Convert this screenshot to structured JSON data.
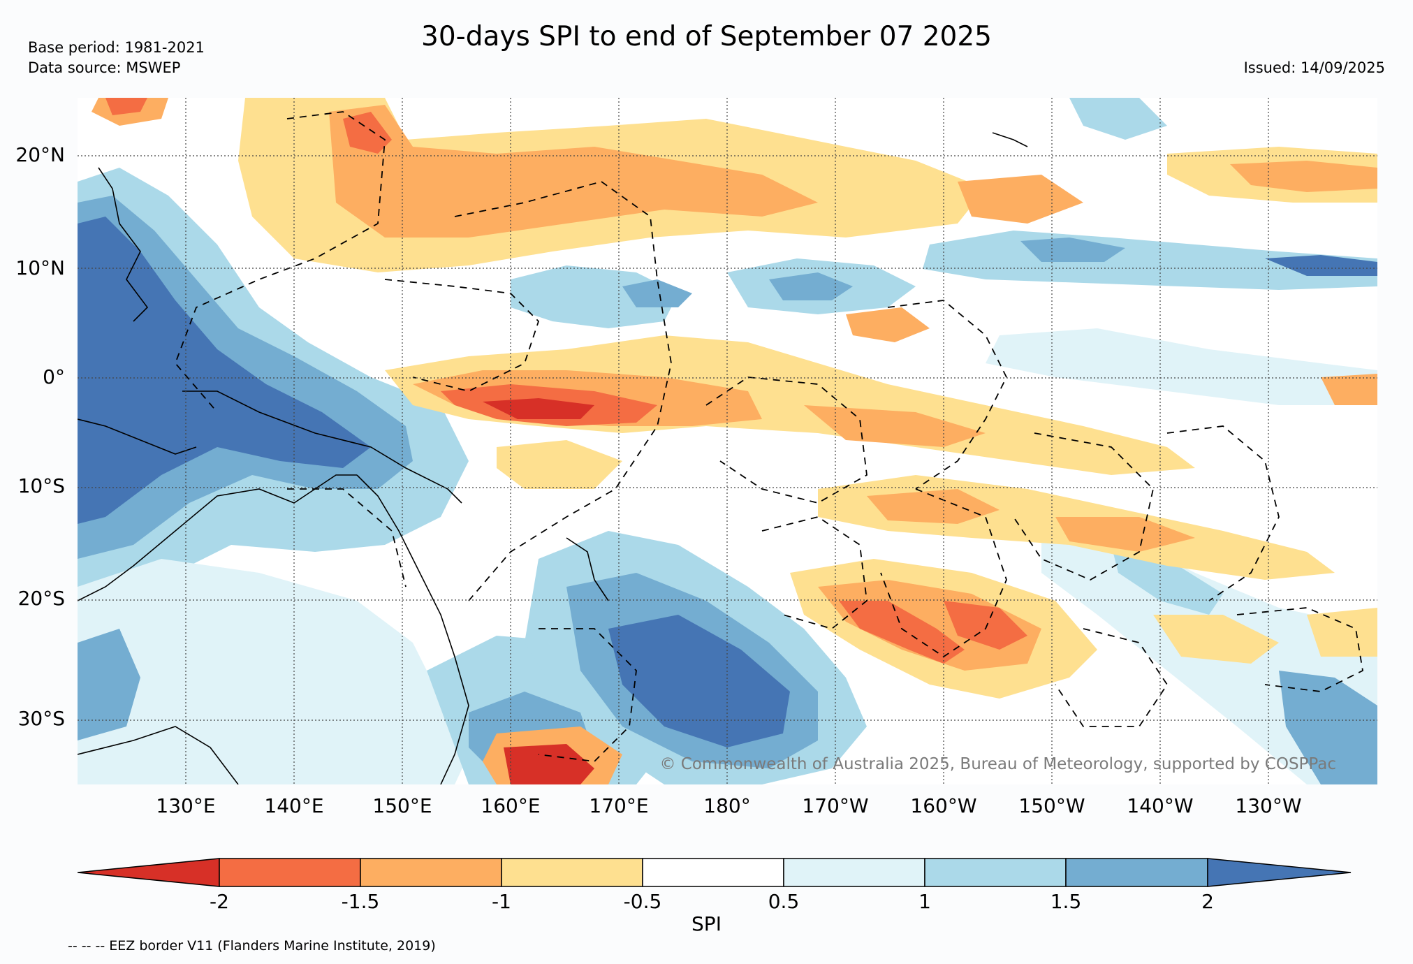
{
  "header": {
    "title": "30-days SPI to end of September 07 2025",
    "base_period": "Base period: 1981-2021",
    "data_source": "Data source: MSWEP",
    "issued": "Issued: 14/09/2025"
  },
  "map": {
    "lat_labels": [
      "20°N",
      "10°N",
      "0°",
      "10°S",
      "20°S",
      "30°S"
    ],
    "lon_labels": [
      "130°E",
      "140°E",
      "150°E",
      "160°E",
      "170°E",
      "180°",
      "170°W",
      "160°W",
      "150°W",
      "140°W",
      "130°W"
    ],
    "copyright": "© Commonwealth of Australia 2025, Bureau of Meteorology, supported by COSPPac",
    "extent": {
      "lon_min": 120,
      "lon_max": 240,
      "lat_min": -35,
      "lat_max": 25
    },
    "gridlines": true
  },
  "colorbar": {
    "label": "SPI",
    "ticks": [
      "-2",
      "-1.5",
      "-1",
      "-0.5",
      "0.5",
      "1",
      "1.5",
      "2"
    ],
    "colors": {
      "extreme_dry": "#d73027",
      "severe_dry": "#f46d43",
      "moderate_dry": "#fdae61",
      "mild_dry": "#fee090",
      "neutral": "#ffffff",
      "mild_wet": "#e0f3f8",
      "moderate_wet": "#abd9e9",
      "severe_wet": "#74add1",
      "extreme_wet": "#4575b4"
    }
  },
  "footer": {
    "eez_note": "-- -- -- EEZ border V11 (Flanders Marine Institute, 2019)"
  }
}
